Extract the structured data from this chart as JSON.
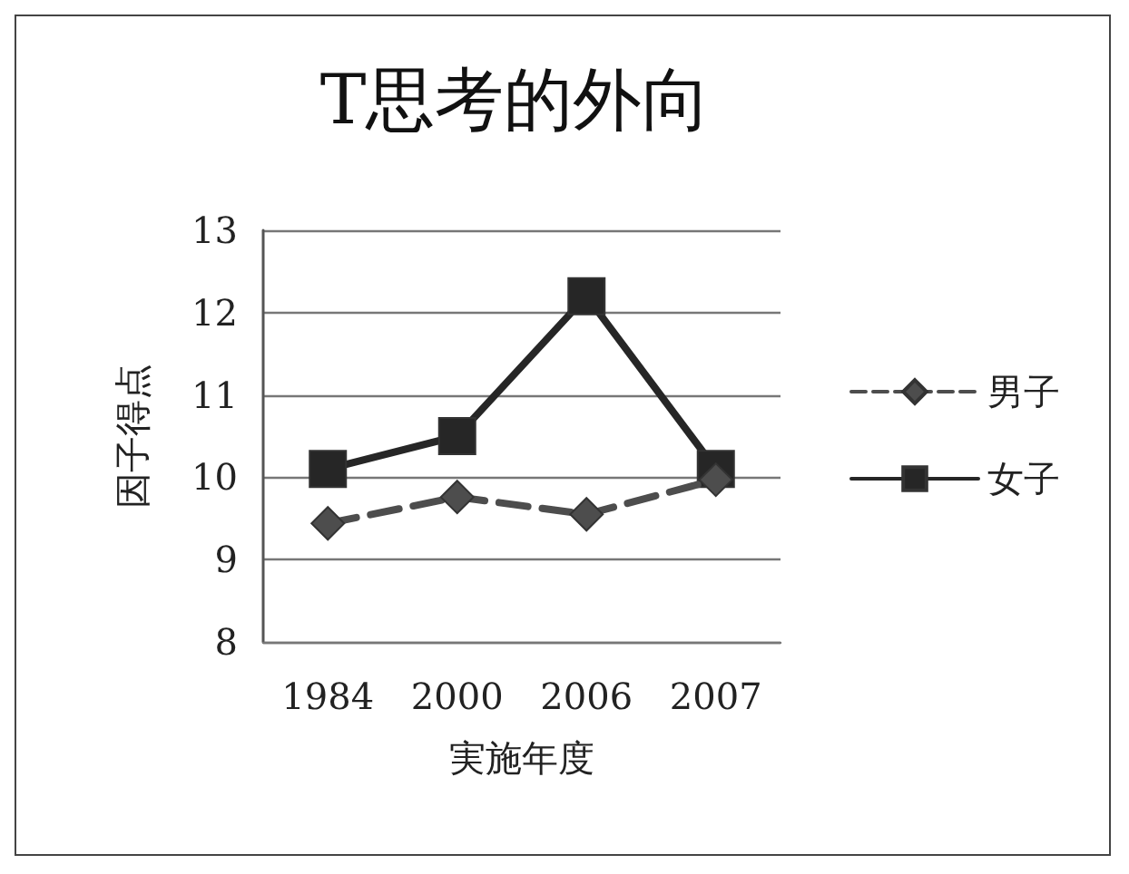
{
  "chart_data": {
    "type": "line",
    "title": "T思考的外向",
    "xlabel": "実施年度",
    "ylabel": "因子得点",
    "categories": [
      "1984",
      "2000",
      "2006",
      "2007"
    ],
    "series": [
      {
        "name": "男子",
        "color": "#4d4d4d",
        "marker": "diamond",
        "line_style": "dashed",
        "values": [
          9.44,
          9.76,
          9.55,
          9.97
        ]
      },
      {
        "name": "女子",
        "color": "#262626",
        "marker": "square",
        "line_style": "solid",
        "values": [
          10.1,
          10.5,
          12.2,
          10.1
        ]
      }
    ],
    "ylim": [
      8,
      13
    ],
    "yticks": [
      8,
      9,
      10,
      11,
      12,
      13
    ],
    "grid": "y",
    "legend": "right"
  }
}
